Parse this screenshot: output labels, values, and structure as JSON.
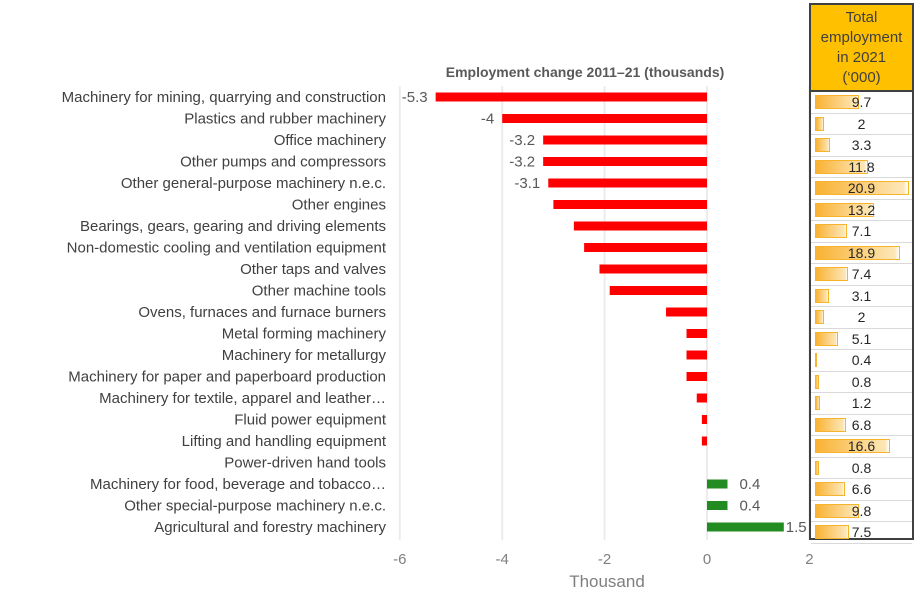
{
  "chart_data": {
    "type": "bar",
    "orientation": "horizontal",
    "title": "Employment change 2011–21 (thousands)",
    "xlabel": "Thousand",
    "xlim": [
      -6,
      2
    ],
    "xticks": [
      "-6",
      "-4",
      "-2",
      "0",
      "2"
    ],
    "grid": true,
    "categories": [
      "Machinery for mining, quarrying and construction",
      "Plastics and rubber machinery",
      "Office machinery",
      "Other pumps and compressors",
      "Other general-purpose machinery n.e.c.",
      "Other engines",
      "Bearings, gears, gearing and driving elements",
      "Non-domestic cooling and ventilation equipment",
      "Other taps and valves",
      "Other machine tools",
      "Ovens, furnaces and furnace burners",
      "Metal forming machinery",
      "Machinery for metallurgy",
      "Machinery for paper and paperboard production",
      "Machinery for textile, apparel and leather…",
      "Fluid power equipment",
      "Lifting and handling equipment",
      "Power-driven hand tools",
      "Machinery for food, beverage and tobacco…",
      "Other special-purpose machinery n.e.c.",
      "Agricultural and forestry machinery"
    ],
    "values": [
      -5.3,
      -4,
      -3.2,
      -3.2,
      -3.1,
      -3.0,
      -2.6,
      -2.4,
      -2.1,
      -1.9,
      -0.8,
      -0.4,
      -0.4,
      -0.4,
      -0.2,
      -0.1,
      -0.1,
      0,
      0.4,
      0.4,
      1.5
    ],
    "data_labels": [
      "-5.3",
      "-4",
      "-3.2",
      "-3.2",
      "-3.1",
      "",
      "",
      "",
      "",
      "",
      "",
      "",
      "",
      "",
      "",
      "",
      "",
      "",
      "0.4",
      "0.4",
      "1.5"
    ],
    "colors": {
      "negative": "#FF0000",
      "positive": "#228B22",
      "grid": "#ececec"
    },
    "side_table": {
      "header": [
        "Total",
        "employment",
        "in 2021",
        "(‘000)"
      ],
      "values": [
        9.7,
        2,
        3.3,
        11.8,
        20.9,
        13.2,
        7.1,
        18.9,
        7.4,
        3.1,
        2,
        5.1,
        0.4,
        0.8,
        1.2,
        6.8,
        16.6,
        0.8,
        6.6,
        9.8,
        7.5
      ],
      "header_color": "#FFC000"
    }
  }
}
